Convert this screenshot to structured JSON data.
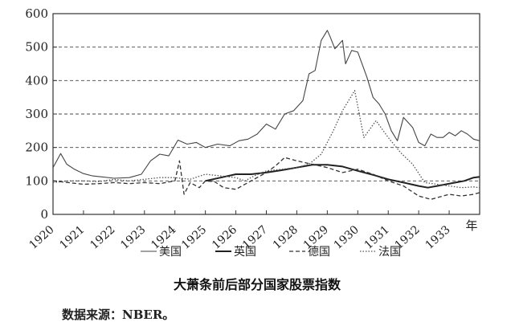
{
  "chart_data": {
    "type": "line",
    "title": "大萧条前后部分国家股票指数",
    "xlabel": "年",
    "ylabel": "",
    "ylim": [
      0,
      600
    ],
    "yticks": [
      0,
      100,
      200,
      300,
      400,
      500,
      600
    ],
    "xlim": [
      1920,
      1934
    ],
    "xticks": [
      "1920",
      "1921",
      "1922",
      "1923",
      "1924",
      "1925",
      "1926",
      "1927",
      "1928",
      "1929",
      "1930",
      "1931",
      "1932",
      "1933"
    ],
    "grid": "horizontal dashed",
    "legend_position": "bottom",
    "series": [
      {
        "name": "美国",
        "style": "thin-solid",
        "color": "#444444",
        "x": [
          1920.0,
          1920.25,
          1920.45,
          1920.7,
          1921.0,
          1921.3,
          1921.6,
          1922.0,
          1922.5,
          1922.9,
          1923.2,
          1923.5,
          1923.8,
          1924.1,
          1924.4,
          1924.7,
          1925.0,
          1925.4,
          1925.8,
          1926.1,
          1926.4,
          1926.7,
          1927.0,
          1927.3,
          1927.6,
          1927.9,
          1928.2,
          1928.4,
          1928.6,
          1928.8,
          1929.0,
          1929.1,
          1929.25,
          1929.35,
          1929.5,
          1929.6,
          1929.8,
          1930.0,
          1930.1,
          1930.3,
          1930.5,
          1930.7,
          1930.9,
          1931.1,
          1931.3,
          1931.5,
          1931.8,
          1932.0,
          1932.2,
          1932.4,
          1932.6,
          1932.8,
          1933.0,
          1933.2,
          1933.4,
          1933.6,
          1933.8,
          1934.0
        ],
        "values": [
          140,
          182,
          150,
          135,
          122,
          115,
          112,
          108,
          110,
          120,
          160,
          180,
          175,
          222,
          210,
          215,
          200,
          210,
          205,
          220,
          225,
          240,
          270,
          255,
          300,
          310,
          340,
          420,
          430,
          520,
          550,
          530,
          495,
          505,
          520,
          450,
          490,
          485,
          460,
          410,
          350,
          330,
          300,
          250,
          220,
          290,
          260,
          215,
          205,
          240,
          230,
          230,
          245,
          235,
          250,
          240,
          225,
          220
        ]
      },
      {
        "name": "英国",
        "style": "thick-solid",
        "color": "#222222",
        "x": [
          1925.0,
          1925.5,
          1926.0,
          1926.5,
          1927.0,
          1927.5,
          1928.0,
          1928.5,
          1929.0,
          1929.5,
          1930.0,
          1930.5,
          1931.0,
          1931.5,
          1932.0,
          1932.3,
          1932.6,
          1932.9,
          1933.2,
          1933.5,
          1933.8,
          1934.0
        ],
        "values": [
          100,
          110,
          120,
          120,
          125,
          132,
          140,
          148,
          148,
          143,
          130,
          118,
          105,
          95,
          85,
          80,
          85,
          90,
          95,
          100,
          110,
          112
        ]
      },
      {
        "name": "德国",
        "style": "dashed",
        "color": "#333333",
        "x": [
          1920.0,
          1920.5,
          1921.0,
          1921.5,
          1922.0,
          1922.5,
          1923.0,
          1923.5,
          1924.0,
          1924.15,
          1924.3,
          1924.5,
          1924.8,
          1925.0,
          1925.3,
          1925.6,
          1926.0,
          1926.5,
          1927.0,
          1927.3,
          1927.6,
          1928.0,
          1928.5,
          1929.0,
          1929.5,
          1930.0,
          1930.5,
          1931.0,
          1931.5,
          1932.0,
          1932.4,
          1932.8,
          1933.0,
          1933.4,
          1933.8,
          1934.0
        ],
        "values": [
          100,
          95,
          90,
          92,
          95,
          92,
          95,
          92,
          100,
          160,
          60,
          95,
          80,
          100,
          98,
          80,
          75,
          100,
          125,
          145,
          170,
          160,
          150,
          140,
          125,
          135,
          120,
          100,
          85,
          55,
          45,
          55,
          60,
          55,
          60,
          65
        ]
      },
      {
        "name": "法国",
        "style": "dotted",
        "color": "#555555",
        "x": [
          1920.0,
          1920.5,
          1921.0,
          1921.5,
          1922.0,
          1922.5,
          1923.0,
          1923.5,
          1924.0,
          1924.5,
          1925.0,
          1925.5,
          1926.0,
          1926.3,
          1926.6,
          1927.0,
          1927.5,
          1928.0,
          1928.4,
          1928.8,
          1929.2,
          1929.5,
          1929.9,
          1930.2,
          1930.6,
          1931.0,
          1931.4,
          1931.8,
          1932.2,
          1932.6,
          1933.0,
          1933.4,
          1933.8,
          1934.0
        ],
        "values": [
          95,
          100,
          100,
          98,
          105,
          100,
          105,
          110,
          110,
          105,
          120,
          115,
          110,
          100,
          115,
          130,
          135,
          140,
          150,
          180,
          250,
          310,
          370,
          230,
          280,
          230,
          185,
          150,
          95,
          90,
          85,
          80,
          82,
          80
        ]
      }
    ]
  },
  "caption": {
    "title": "大萧条前后部分国家股票指数",
    "source": "数据来源：NBER。"
  }
}
